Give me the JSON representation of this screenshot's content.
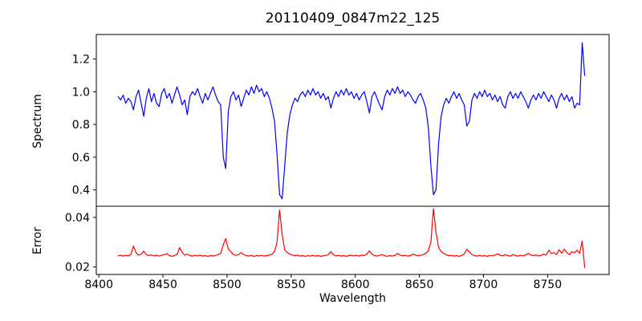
{
  "chart_data": {
    "type": "line",
    "title": "20110409_0847m22_125",
    "xlabel": "Wavelength",
    "grid": false,
    "legend": null,
    "xlim": [
      8398,
      8798
    ],
    "x_ticks": [
      8400,
      8450,
      8500,
      8550,
      8600,
      8650,
      8700,
      8750
    ],
    "x_tick_labels": [
      "8400",
      "8450",
      "8500",
      "8550",
      "8600",
      "8650",
      "8700",
      "8750"
    ],
    "x_start": 8415,
    "x_step": 2,
    "panels": [
      {
        "name": "spectrum",
        "ylabel": "Spectrum",
        "ylim": [
          0.3,
          1.35
        ],
        "y_ticks": [
          0.4,
          0.6,
          0.8,
          1.0,
          1.2
        ],
        "y_tick_labels": [
          "0.4",
          "0.6",
          "0.8",
          "1.0",
          "1.2"
        ],
        "line_color": "#0000ff",
        "features": "absorption lines near 8498 (depth ~0.53), 8542 (depth ~0.34), 8662 (depth ~0.37), 8688 (~0.79); emission-like spike to ~1.30 at ~8777; continuum ~0.97",
        "values": [
          0.97,
          0.95,
          0.98,
          0.93,
          0.96,
          0.94,
          0.89,
          0.97,
          1.01,
          0.93,
          0.85,
          0.96,
          1.02,
          0.94,
          0.99,
          0.93,
          0.91,
          0.99,
          1.02,
          0.96,
          0.99,
          0.93,
          0.98,
          1.03,
          0.98,
          0.92,
          0.95,
          0.86,
          0.97,
          1.0,
          0.98,
          1.02,
          0.97,
          0.93,
          0.99,
          0.95,
          0.99,
          1.03,
          0.98,
          0.94,
          0.92,
          0.6,
          0.53,
          0.88,
          0.97,
          1.0,
          0.95,
          0.98,
          0.91,
          0.96,
          1.01,
          0.98,
          1.03,
          0.99,
          1.04,
          1.0,
          1.02,
          0.97,
          1.0,
          0.96,
          0.9,
          0.82,
          0.62,
          0.37,
          0.345,
          0.55,
          0.75,
          0.86,
          0.92,
          0.96,
          0.94,
          0.98,
          1.0,
          0.97,
          1.01,
          0.98,
          1.02,
          0.98,
          1.0,
          0.96,
          0.99,
          0.95,
          0.97,
          0.9,
          0.96,
          1.0,
          0.97,
          1.01,
          0.98,
          1.02,
          0.98,
          1.0,
          0.96,
          0.99,
          0.95,
          0.98,
          1.0,
          0.94,
          0.87,
          0.97,
          1.0,
          0.96,
          0.92,
          0.89,
          0.97,
          1.01,
          0.98,
          1.02,
          0.99,
          1.03,
          0.99,
          1.01,
          0.97,
          1.0,
          0.98,
          0.95,
          0.93,
          0.97,
          0.99,
          0.95,
          0.9,
          0.78,
          0.55,
          0.37,
          0.4,
          0.68,
          0.85,
          0.92,
          0.96,
          0.93,
          0.97,
          1.0,
          0.96,
          0.99,
          0.95,
          0.92,
          0.79,
          0.82,
          0.95,
          0.99,
          0.96,
          1.0,
          0.97,
          1.01,
          0.97,
          0.99,
          0.95,
          0.98,
          0.94,
          0.97,
          0.92,
          0.9,
          0.97,
          1.0,
          0.96,
          0.99,
          0.96,
          1.0,
          0.97,
          0.94,
          0.9,
          0.95,
          0.98,
          0.95,
          0.99,
          0.96,
          1.0,
          0.97,
          0.94,
          0.98,
          0.95,
          0.9,
          0.96,
          0.99,
          0.95,
          0.98,
          0.94,
          0.97,
          0.9,
          0.93,
          0.92,
          1.3,
          1.1
        ]
      },
      {
        "name": "error",
        "ylabel": "Error",
        "ylim": [
          0.017,
          0.0445
        ],
        "y_ticks": [
          0.02,
          0.04
        ],
        "y_tick_labels": [
          "0.02",
          "0.04"
        ],
        "line_color": "#ff0000",
        "features": "baseline ~0.025 with spikes to ~0.043 at 8542 and ~0.044 at 8662, bump ~0.031 at 8498, spike ~0.030 then dip ~0.020 at far right edge",
        "values": [
          0.0245,
          0.0248,
          0.0244,
          0.0247,
          0.0245,
          0.025,
          0.0285,
          0.0258,
          0.0248,
          0.0252,
          0.0264,
          0.025,
          0.0246,
          0.0249,
          0.0245,
          0.0248,
          0.0244,
          0.0247,
          0.025,
          0.0254,
          0.0246,
          0.0243,
          0.0247,
          0.025,
          0.0278,
          0.026,
          0.0248,
          0.0252,
          0.0246,
          0.0244,
          0.0247,
          0.0245,
          0.0248,
          0.0244,
          0.0246,
          0.0243,
          0.0246,
          0.0244,
          0.0247,
          0.025,
          0.0255,
          0.029,
          0.0315,
          0.0272,
          0.0262,
          0.025,
          0.0247,
          0.025,
          0.0258,
          0.025,
          0.0246,
          0.0244,
          0.0247,
          0.0243,
          0.0246,
          0.0245,
          0.0247,
          0.0244,
          0.0246,
          0.0248,
          0.0252,
          0.0262,
          0.03,
          0.043,
          0.033,
          0.027,
          0.0258,
          0.0252,
          0.0248,
          0.0246,
          0.0248,
          0.0244,
          0.0246,
          0.0243,
          0.0246,
          0.0244,
          0.0247,
          0.0244,
          0.0246,
          0.0243,
          0.0245,
          0.0247,
          0.025,
          0.0262,
          0.025,
          0.0245,
          0.0247,
          0.0244,
          0.0246,
          0.0243,
          0.0246,
          0.0248,
          0.0245,
          0.0247,
          0.0244,
          0.0248,
          0.0246,
          0.0252,
          0.0265,
          0.0252,
          0.0246,
          0.0244,
          0.0247,
          0.025,
          0.0245,
          0.0243,
          0.0246,
          0.0244,
          0.0247,
          0.0255,
          0.0248,
          0.0245,
          0.0247,
          0.0244,
          0.0246,
          0.0252,
          0.0248,
          0.0245,
          0.0247,
          0.025,
          0.0255,
          0.0266,
          0.03,
          0.0435,
          0.034,
          0.028,
          0.0262,
          0.0255,
          0.0249,
          0.0246,
          0.0247,
          0.0244,
          0.0246,
          0.0243,
          0.0247,
          0.0252,
          0.0272,
          0.026,
          0.025,
          0.0246,
          0.0244,
          0.0247,
          0.0244,
          0.0246,
          0.0243,
          0.0247,
          0.0245,
          0.0248,
          0.0253,
          0.0247,
          0.0245,
          0.025,
          0.0246,
          0.0244,
          0.025,
          0.0246,
          0.0244,
          0.0247,
          0.0245,
          0.0249,
          0.0255,
          0.0248,
          0.0246,
          0.0249,
          0.0245,
          0.0247,
          0.0252,
          0.0248,
          0.0268,
          0.0254,
          0.0258,
          0.025,
          0.027,
          0.0256,
          0.0272,
          0.0258,
          0.025,
          0.0262,
          0.0258,
          0.0268,
          0.0255,
          0.0305,
          0.0198
        ]
      }
    ]
  }
}
